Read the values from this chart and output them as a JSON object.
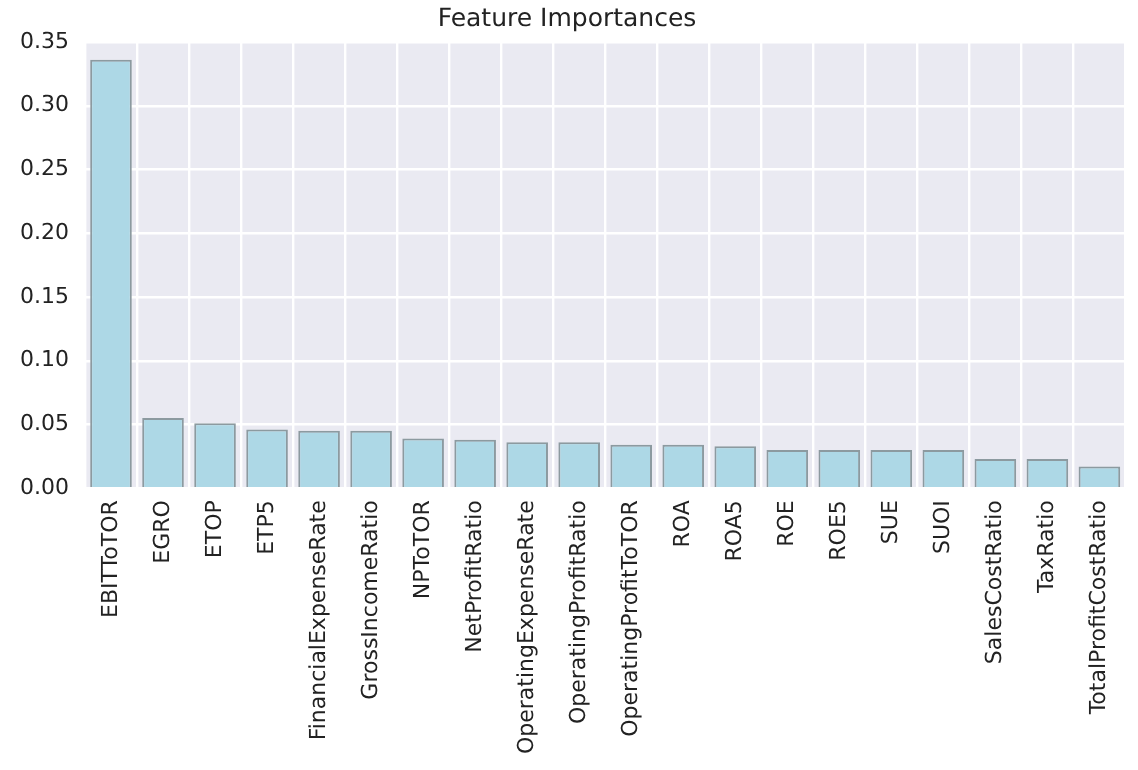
{
  "chart_data": {
    "type": "bar",
    "title": "Feature Importances",
    "categories": [
      "EBITToTOR",
      "EGRO",
      "ETOP",
      "ETP5",
      "FinancialExpenseRate",
      "GrossIncomeRatio",
      "NPToTOR",
      "NetProfitRatio",
      "OperatingExpenseRate",
      "OperatingProfitRatio",
      "OperatingProfitToTOR",
      "ROA",
      "ROA5",
      "ROE",
      "ROE5",
      "SUE",
      "SUOI",
      "SalesCostRatio",
      "TaxRatio",
      "TotalProfitCostRatio"
    ],
    "values": [
      0.336,
      0.055,
      0.051,
      0.046,
      0.045,
      0.045,
      0.039,
      0.038,
      0.036,
      0.036,
      0.034,
      0.034,
      0.033,
      0.03,
      0.03,
      0.03,
      0.03,
      0.023,
      0.023,
      0.017
    ],
    "color": "#add8e6",
    "ylim": [
      0,
      0.35
    ],
    "yticks": [
      {
        "value": 0,
        "label": "0.00"
      },
      {
        "value": 0.05,
        "label": "0.05"
      },
      {
        "value": 0.1,
        "label": "0.10"
      },
      {
        "value": 0.15,
        "label": "0.15"
      },
      {
        "value": 0.2,
        "label": "0.20"
      },
      {
        "value": 0.25,
        "label": "0.25"
      },
      {
        "value": 0.3,
        "label": "0.30"
      },
      {
        "value": 0.35,
        "label": "0.35"
      }
    ],
    "grid": true,
    "legend": false
  }
}
